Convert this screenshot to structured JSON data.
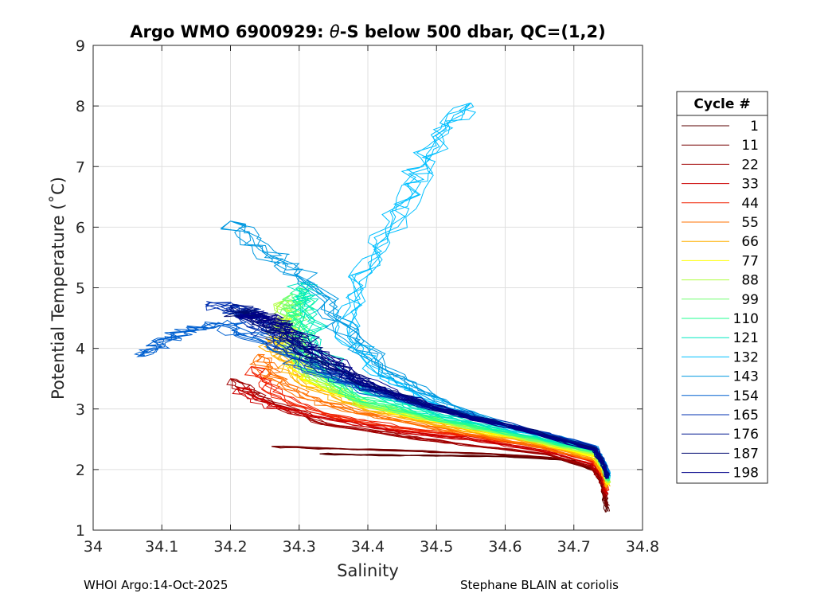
{
  "chart_data": {
    "type": "line",
    "title_prefix": "Argo WMO 6900929: ",
    "title_theta": "θ",
    "title_suffix": "-S below 500 dbar,  QC=(1,2)",
    "xlabel": "Salinity",
    "ylabel": "Potential Temperature (˚C)",
    "xlim": [
      34.0,
      34.8
    ],
    "ylim": [
      1,
      9
    ],
    "xticks": [
      34.0,
      34.1,
      34.2,
      34.3,
      34.4,
      34.5,
      34.6,
      34.7,
      34.8
    ],
    "xtick_labels": [
      "34",
      "34.1",
      "34.2",
      "34.3",
      "34.4",
      "34.5",
      "34.6",
      "34.7",
      "34.8"
    ],
    "yticks": [
      1,
      2,
      3,
      4,
      5,
      6,
      7,
      8,
      9
    ],
    "ytick_labels": [
      "1",
      "2",
      "3",
      "4",
      "5",
      "6",
      "7",
      "8",
      "9"
    ],
    "grid": true,
    "legend_position": "right",
    "legend": {
      "title": "Cycle #",
      "entries": [
        {
          "label": "1",
          "color": "#5a0000"
        },
        {
          "label": "11",
          "color": "#760000"
        },
        {
          "label": "22",
          "color": "#a00000"
        },
        {
          "label": "33",
          "color": "#cc0000"
        },
        {
          "label": "44",
          "color": "#f02000"
        },
        {
          "label": "55",
          "color": "#ff7000"
        },
        {
          "label": "66",
          "color": "#ffb000"
        },
        {
          "label": "77",
          "color": "#ffff00"
        },
        {
          "label": "88",
          "color": "#b0ff40"
        },
        {
          "label": "99",
          "color": "#70ff70"
        },
        {
          "label": "110",
          "color": "#20ff90"
        },
        {
          "label": "121",
          "color": "#00e8c0"
        },
        {
          "label": "132",
          "color": "#00bfff"
        },
        {
          "label": "143",
          "color": "#0098e0"
        },
        {
          "label": "154",
          "color": "#0060d0"
        },
        {
          "label": "165",
          "color": "#0030b0"
        },
        {
          "label": "176",
          "color": "#001890"
        },
        {
          "label": "187",
          "color": "#000a70"
        },
        {
          "label": "198",
          "color": "#00008a"
        }
      ]
    },
    "profile_groups": [
      {
        "cycle_start": 1,
        "color": "#5a0000",
        "points": [
          [
            34.748,
            1.3
          ],
          [
            34.742,
            1.7
          ],
          [
            34.735,
            1.95
          ],
          [
            34.7,
            2.15
          ],
          [
            34.6,
            2.22
          ],
          [
            34.5,
            2.23
          ],
          [
            34.4,
            2.24
          ],
          [
            34.33,
            2.26
          ]
        ]
      },
      {
        "cycle_start": 11,
        "color": "#760000",
        "points": [
          [
            34.748,
            1.4
          ],
          [
            34.742,
            1.75
          ],
          [
            34.73,
            2.0
          ],
          [
            34.68,
            2.18
          ],
          [
            34.58,
            2.26
          ],
          [
            34.48,
            2.3
          ],
          [
            34.36,
            2.34
          ],
          [
            34.26,
            2.38
          ]
        ]
      },
      {
        "cycle_start": 22,
        "color": "#a00000",
        "points": [
          [
            34.747,
            1.55
          ],
          [
            34.74,
            1.8
          ],
          [
            34.725,
            2.05
          ],
          [
            34.66,
            2.25
          ],
          [
            34.55,
            2.4
          ],
          [
            34.45,
            2.55
          ],
          [
            34.34,
            2.75
          ],
          [
            34.25,
            3.15
          ],
          [
            34.2,
            3.5
          ]
        ]
      },
      {
        "cycle_start": 33,
        "color": "#cc0000",
        "points": [
          [
            34.748,
            1.6
          ],
          [
            34.742,
            1.85
          ],
          [
            34.728,
            2.08
          ],
          [
            34.66,
            2.3
          ],
          [
            34.55,
            2.5
          ],
          [
            34.45,
            2.62
          ],
          [
            34.35,
            2.82
          ],
          [
            34.26,
            3.05
          ],
          [
            34.21,
            3.35
          ]
        ]
      },
      {
        "cycle_start": 44,
        "color": "#f02000",
        "points": [
          [
            34.749,
            1.65
          ],
          [
            34.743,
            1.9
          ],
          [
            34.73,
            2.12
          ],
          [
            34.66,
            2.35
          ],
          [
            34.55,
            2.55
          ],
          [
            34.44,
            2.7
          ],
          [
            34.34,
            2.9
          ],
          [
            34.27,
            3.2
          ],
          [
            34.23,
            3.7
          ]
        ]
      },
      {
        "cycle_start": 55,
        "color": "#ff7000",
        "points": [
          [
            34.749,
            1.7
          ],
          [
            34.743,
            1.92
          ],
          [
            34.73,
            2.15
          ],
          [
            34.65,
            2.38
          ],
          [
            34.53,
            2.62
          ],
          [
            34.42,
            2.85
          ],
          [
            34.32,
            3.15
          ],
          [
            34.26,
            3.55
          ],
          [
            34.24,
            3.9
          ]
        ]
      },
      {
        "cycle_start": 66,
        "color": "#ffb000",
        "points": [
          [
            34.749,
            1.72
          ],
          [
            34.743,
            1.95
          ],
          [
            34.73,
            2.18
          ],
          [
            34.65,
            2.42
          ],
          [
            34.52,
            2.7
          ],
          [
            34.4,
            3.0
          ],
          [
            34.31,
            3.4
          ],
          [
            34.27,
            3.9
          ],
          [
            34.26,
            4.2
          ]
        ]
      },
      {
        "cycle_start": 77,
        "color": "#ffff00",
        "points": [
          [
            34.75,
            1.75
          ],
          [
            34.744,
            1.98
          ],
          [
            34.73,
            2.22
          ],
          [
            34.65,
            2.45
          ],
          [
            34.52,
            2.75
          ],
          [
            34.4,
            3.05
          ],
          [
            34.31,
            3.5
          ],
          [
            34.28,
            4.1
          ],
          [
            34.27,
            4.5
          ]
        ]
      },
      {
        "cycle_start": 88,
        "color": "#b0ff40",
        "points": [
          [
            34.75,
            1.78
          ],
          [
            34.744,
            2.0
          ],
          [
            34.73,
            2.25
          ],
          [
            34.64,
            2.48
          ],
          [
            34.51,
            2.8
          ],
          [
            34.39,
            3.1
          ],
          [
            34.31,
            3.6
          ],
          [
            34.28,
            4.3
          ],
          [
            34.28,
            4.8
          ]
        ]
      },
      {
        "cycle_start": 99,
        "color": "#70ff70",
        "points": [
          [
            34.75,
            1.8
          ],
          [
            34.744,
            2.02
          ],
          [
            34.73,
            2.28
          ],
          [
            34.64,
            2.5
          ],
          [
            34.5,
            2.82
          ],
          [
            34.38,
            3.15
          ],
          [
            34.31,
            3.7
          ],
          [
            34.29,
            4.4
          ],
          [
            34.29,
            4.9
          ]
        ]
      },
      {
        "cycle_start": 110,
        "color": "#20ff90",
        "points": [
          [
            34.751,
            1.82
          ],
          [
            34.745,
            2.05
          ],
          [
            34.73,
            2.3
          ],
          [
            34.63,
            2.55
          ],
          [
            34.5,
            2.85
          ],
          [
            34.38,
            3.2
          ],
          [
            34.31,
            3.8
          ],
          [
            34.3,
            4.5
          ],
          [
            34.3,
            5.0
          ]
        ]
      },
      {
        "cycle_start": 121,
        "color": "#00e8c0",
        "points": [
          [
            34.751,
            1.85
          ],
          [
            34.745,
            2.08
          ],
          [
            34.73,
            2.32
          ],
          [
            34.63,
            2.58
          ],
          [
            34.5,
            2.9
          ],
          [
            34.39,
            3.3
          ],
          [
            34.32,
            4.0
          ],
          [
            34.31,
            4.7
          ],
          [
            34.31,
            5.1
          ]
        ]
      },
      {
        "cycle_start": 132,
        "color": "#00bfff",
        "points": [
          [
            34.751,
            1.88
          ],
          [
            34.745,
            2.1
          ],
          [
            34.73,
            2.35
          ],
          [
            34.62,
            2.65
          ],
          [
            34.52,
            3.0
          ],
          [
            34.43,
            3.5
          ],
          [
            34.37,
            4.2
          ],
          [
            34.39,
            5.2
          ],
          [
            34.43,
            6.0
          ],
          [
            34.47,
            6.8
          ],
          [
            34.5,
            7.5
          ],
          [
            34.55,
            8.05
          ]
        ]
      },
      {
        "cycle_start": 143,
        "color": "#0098e0",
        "points": [
          [
            34.751,
            1.9
          ],
          [
            34.745,
            2.12
          ],
          [
            34.73,
            2.37
          ],
          [
            34.62,
            2.68
          ],
          [
            34.52,
            3.05
          ],
          [
            34.43,
            3.6
          ],
          [
            34.36,
            4.4
          ],
          [
            34.3,
            5.2
          ],
          [
            34.25,
            5.6
          ],
          [
            34.2,
            6.1
          ]
        ]
      },
      {
        "cycle_start": 154,
        "color": "#0060d0",
        "points": [
          [
            34.75,
            1.92
          ],
          [
            34.744,
            2.14
          ],
          [
            34.73,
            2.38
          ],
          [
            34.62,
            2.68
          ],
          [
            34.5,
            3.0
          ],
          [
            34.4,
            3.3
          ],
          [
            34.32,
            3.65
          ],
          [
            34.25,
            4.1
          ],
          [
            34.19,
            4.4
          ],
          [
            34.14,
            4.3
          ],
          [
            34.1,
            4.1
          ],
          [
            34.075,
            3.87
          ]
        ]
      },
      {
        "cycle_start": 165,
        "color": "#0030b0",
        "points": [
          [
            34.75,
            1.9
          ],
          [
            34.744,
            2.12
          ],
          [
            34.73,
            2.37
          ],
          [
            34.62,
            2.7
          ],
          [
            34.5,
            3.02
          ],
          [
            34.4,
            3.35
          ],
          [
            34.32,
            3.75
          ],
          [
            34.26,
            4.2
          ],
          [
            34.22,
            4.6
          ],
          [
            34.17,
            4.75
          ]
        ]
      },
      {
        "cycle_start": 176,
        "color": "#001890",
        "points": [
          [
            34.749,
            1.88
          ],
          [
            34.743,
            2.1
          ],
          [
            34.73,
            2.36
          ],
          [
            34.62,
            2.69
          ],
          [
            34.5,
            3.0
          ],
          [
            34.4,
            3.38
          ],
          [
            34.32,
            3.8
          ],
          [
            34.27,
            4.25
          ],
          [
            34.23,
            4.55
          ],
          [
            34.2,
            4.7
          ]
        ]
      },
      {
        "cycle_start": 187,
        "color": "#000a70",
        "points": [
          [
            34.749,
            1.86
          ],
          [
            34.743,
            2.08
          ],
          [
            34.73,
            2.34
          ],
          [
            34.62,
            2.68
          ],
          [
            34.5,
            3.01
          ],
          [
            34.4,
            3.4
          ],
          [
            34.33,
            3.85
          ],
          [
            34.28,
            4.25
          ],
          [
            34.24,
            4.55
          ],
          [
            34.21,
            4.6
          ]
        ]
      },
      {
        "cycle_start": 198,
        "color": "#00008a",
        "points": [
          [
            34.749,
            1.85
          ],
          [
            34.743,
            2.06
          ],
          [
            34.73,
            2.32
          ],
          [
            34.62,
            2.67
          ],
          [
            34.5,
            3.0
          ],
          [
            34.4,
            3.42
          ],
          [
            34.33,
            3.9
          ],
          [
            34.29,
            4.3
          ],
          [
            34.25,
            4.5
          ],
          [
            34.22,
            4.55
          ]
        ]
      }
    ]
  },
  "footer": {
    "left": "WHOI Argo:14-Oct-2025",
    "right": "Stephane BLAIN at coriolis"
  }
}
